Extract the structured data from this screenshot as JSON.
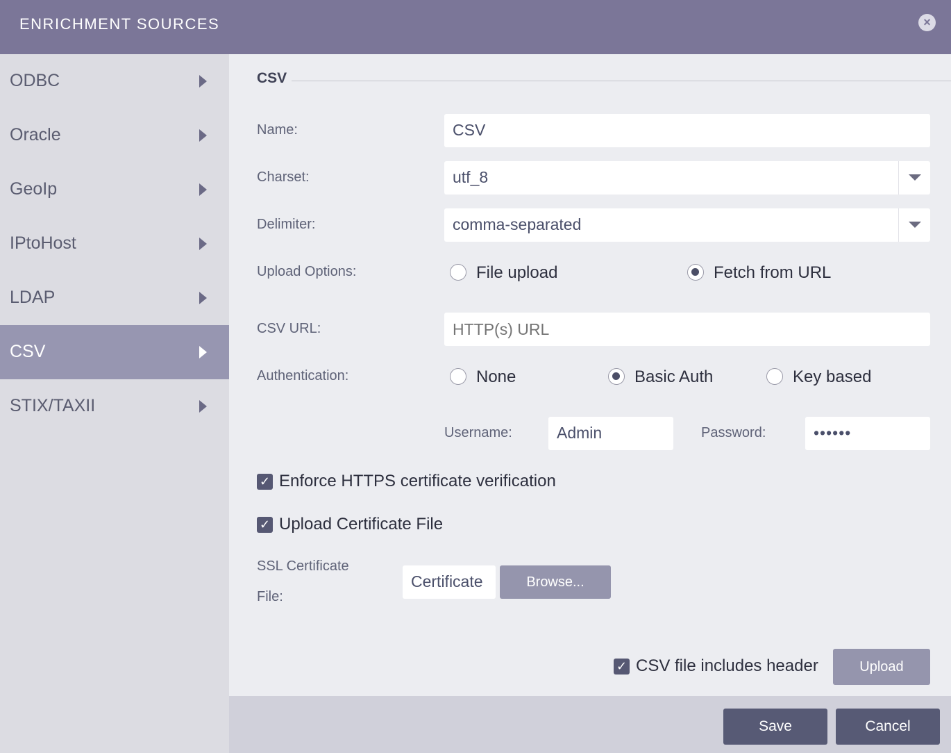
{
  "header": {
    "title": "ENRICHMENT SOURCES",
    "close_icon": "close-circle-icon"
  },
  "sidebar": {
    "items": [
      {
        "label": "ODBC"
      },
      {
        "label": "Oracle"
      },
      {
        "label": "GeoIp"
      },
      {
        "label": "IPtoHost"
      },
      {
        "label": "LDAP"
      },
      {
        "label": "CSV",
        "selected": true
      },
      {
        "label": "STIX/TAXII"
      }
    ]
  },
  "form": {
    "section_title": "CSV",
    "name_label": "Name:",
    "name_value": "CSV",
    "charset_label": "Charset:",
    "charset_value": "utf_8",
    "delimiter_label": "Delimiter:",
    "delimiter_value": "comma-separated",
    "upload_label": "Upload Options:",
    "upload_options": [
      "File upload",
      "Fetch from URL"
    ],
    "upload_selected": "Fetch from URL",
    "url_label": "CSV URL:",
    "url_placeholder": "HTTP(s) URL",
    "auth_label": "Authentication:",
    "auth_options": [
      "None",
      "Basic Auth",
      "Key based"
    ],
    "auth_selected": "Basic Auth",
    "username_label": "Username:",
    "username_value": "Admin",
    "password_label": "Password:",
    "password_value": "••••••",
    "enforce_https": "Enforce HTTPS certificate verification",
    "upload_cert": "Upload Certificate File",
    "ssl_label_1": "SSL Certificate",
    "ssl_label_2": "File:",
    "cert_placeholder": "Certificate",
    "browse": "Browse...",
    "header_check": "CSV file includes header",
    "upload_button": "Upload"
  },
  "footer": {
    "save": "Save",
    "cancel": "Cancel"
  },
  "colors": {
    "header": "#7b7698",
    "selected": "#9796b1",
    "button": "#575a75"
  }
}
